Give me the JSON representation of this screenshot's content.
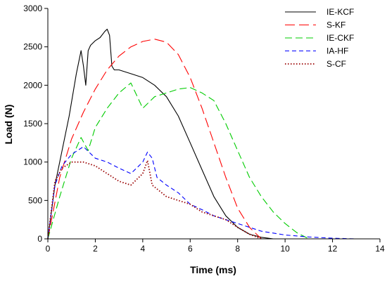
{
  "chart_data": {
    "type": "line",
    "xlabel": "Time (ms)",
    "ylabel": "Load (N)",
    "xlim": [
      0,
      14
    ],
    "ylim": [
      0,
      3000
    ],
    "xticks": [
      0,
      2,
      4,
      6,
      8,
      10,
      12,
      14
    ],
    "yticks": [
      0,
      500,
      1000,
      1500,
      2000,
      2500,
      3000
    ],
    "grid": false,
    "legend_position": "top-right",
    "series": [
      {
        "name": "IE-KCF",
        "color": "#000000",
        "dash": "solid",
        "x": [
          0,
          0.3,
          0.6,
          0.9,
          1.2,
          1.4,
          1.5,
          1.6,
          1.7,
          1.8,
          2.0,
          2.2,
          2.4,
          2.5,
          2.6,
          2.7,
          2.8,
          3.0,
          3.5,
          4.0,
          4.5,
          5.0,
          5.5,
          6.0,
          6.5,
          7.0,
          7.5,
          8.0,
          8.5,
          9.0,
          9.5
        ],
        "y": [
          0,
          700,
          1150,
          1600,
          2150,
          2450,
          2250,
          2000,
          2450,
          2520,
          2580,
          2620,
          2700,
          2730,
          2650,
          2250,
          2200,
          2200,
          2150,
          2100,
          2000,
          1850,
          1600,
          1250,
          900,
          550,
          300,
          150,
          60,
          20,
          0
        ]
      },
      {
        "name": "S-KF",
        "color": "#ff0000",
        "dash": "long",
        "x": [
          0,
          0.5,
          1.0,
          1.5,
          2.0,
          2.5,
          3.0,
          3.5,
          4.0,
          4.5,
          5.0,
          5.5,
          6.0,
          6.5,
          7.0,
          7.5,
          8.0,
          8.5,
          9.0
        ],
        "y": [
          0,
          800,
          1300,
          1650,
          1950,
          2200,
          2380,
          2500,
          2570,
          2600,
          2560,
          2400,
          2100,
          1700,
          1250,
          800,
          400,
          150,
          0
        ]
      },
      {
        "name": "IE-CKF",
        "color": "#00cc00",
        "dash": "medium",
        "x": [
          0,
          0.5,
          1.0,
          1.4,
          1.7,
          2.0,
          2.5,
          3.0,
          3.5,
          4.0,
          4.5,
          5.0,
          5.5,
          6.0,
          6.5,
          7.0,
          7.5,
          8.0,
          8.5,
          9.0,
          9.5,
          10.0,
          10.5,
          11.0
        ],
        "y": [
          0,
          550,
          1050,
          1320,
          1150,
          1450,
          1700,
          1900,
          2030,
          1700,
          1850,
          1900,
          1950,
          1970,
          1900,
          1800,
          1500,
          1150,
          800,
          550,
          350,
          200,
          80,
          0
        ]
      },
      {
        "name": "IA-HF",
        "color": "#0000ff",
        "dash": "short",
        "x": [
          0,
          0.3,
          0.6,
          1.0,
          1.5,
          2.0,
          2.5,
          3.0,
          3.5,
          4.0,
          4.2,
          4.4,
          4.6,
          5.0,
          5.5,
          6.0,
          6.5,
          7.0,
          7.5,
          8.0,
          8.5,
          9.0,
          10.0,
          11.0,
          12.0,
          13.0
        ],
        "y": [
          0,
          700,
          950,
          1100,
          1200,
          1050,
          1000,
          920,
          850,
          1000,
          1130,
          1050,
          800,
          700,
          600,
          450,
          380,
          300,
          250,
          200,
          150,
          100,
          50,
          25,
          8,
          0
        ]
      },
      {
        "name": "S-CF",
        "color": "#990000",
        "dash": "dot",
        "x": [
          0,
          0.3,
          0.6,
          1.0,
          1.5,
          2.0,
          2.5,
          3.0,
          3.5,
          4.0,
          4.2,
          4.4,
          4.6,
          5.0,
          5.5,
          6.0,
          6.5,
          7.0,
          7.5,
          8.0,
          8.5,
          9.0
        ],
        "y": [
          0,
          750,
          920,
          1000,
          1000,
          950,
          850,
          750,
          700,
          850,
          1020,
          700,
          650,
          550,
          500,
          450,
          350,
          300,
          250,
          150,
          60,
          0
        ]
      }
    ]
  }
}
